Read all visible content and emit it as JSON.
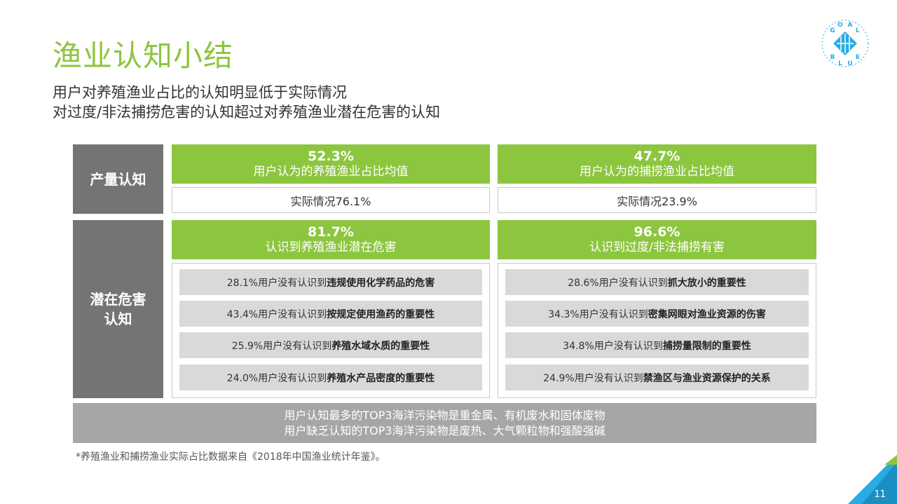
{
  "header": {
    "title": "渔业认知小结",
    "subtitle_lines": [
      "用户对养殖渔业占比的认知明显低于实际情况",
      "对过度/非法捕捞危害的认知超过对养殖渔业潜在危害的认知"
    ]
  },
  "logo": {
    "letters_top": "GOAL",
    "letters_bottom": "BLUE"
  },
  "rows": {
    "production": {
      "category": "产量认知",
      "left": {
        "percent": "52.3%",
        "label": "用户认为的养殖渔业占比均值",
        "actual": "实际情况76.1%"
      },
      "right": {
        "percent": "47.7%",
        "label": "用户认为的捕捞渔业占比均值",
        "actual": "实际情况23.9%"
      }
    },
    "harm": {
      "category_lines": [
        "潜在危害",
        "认知"
      ],
      "left": {
        "percent": "81.7%",
        "label": "认识到养殖渔业潜在危害",
        "items": [
          {
            "prefix": "28.1%用户没有认识到",
            "bold": "违规使用化学药品的危害"
          },
          {
            "prefix": "43.4%用户没有认识到",
            "bold": "按规定使用渔药的重要性"
          },
          {
            "prefix": "25.9%用户没有认识到",
            "bold": "养殖水域水质的重要性"
          },
          {
            "prefix": "24.0%用户没有认识到",
            "bold": "养殖水产品密度的重要性"
          }
        ]
      },
      "right": {
        "percent": "96.6%",
        "label": "认识到过度/非法捕捞有害",
        "items": [
          {
            "prefix": "28.6%用户没有认识到",
            "bold": "抓大放小的重要性"
          },
          {
            "prefix": "34.3%用户没有认识到",
            "bold": "密集网眼对渔业资源的伤害"
          },
          {
            "prefix": "34.8%用户没有认识到",
            "bold": "捕捞量限制的重要性"
          },
          {
            "prefix": "24.9%用户没有认识到",
            "bold": "禁渔区与渔业资源保护的关系"
          }
        ]
      }
    }
  },
  "summary_lines": [
    "用户认知最多的TOP3海洋污染物是重金属、有机废水和固体废物",
    "用户缺乏认知的TOP3海洋污染物是废热、大气颗粒物和强酸强碱"
  ],
  "footnote": "*养殖渔业和捕捞渔业实际占比数据来自《2018年中国渔业统计年鉴》。",
  "page_number": "11",
  "colors": {
    "green": "#8cc63f",
    "dark_gray": "#747474",
    "light_gray": "#d9d9d9",
    "summary_gray": "#a6a6a6",
    "logo_blue": "#29abe2"
  }
}
